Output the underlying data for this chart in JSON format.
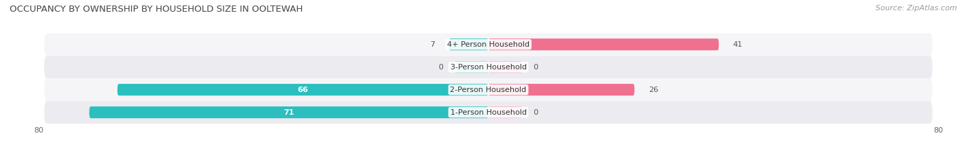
{
  "title": "OCCUPANCY BY OWNERSHIP BY HOUSEHOLD SIZE IN OOLTEWAH",
  "source": "Source: ZipAtlas.com",
  "categories": [
    "1-Person Household",
    "2-Person Household",
    "3-Person Household",
    "4+ Person Household"
  ],
  "owner_values": [
    71,
    66,
    0,
    7
  ],
  "renter_values": [
    0,
    26,
    0,
    41
  ],
  "owner_color": "#2bbfbf",
  "renter_color": "#f07090",
  "owner_color_zero": "#a0dede",
  "renter_color_zero": "#f8b8cc",
  "bg_row_color": "#ebebf0",
  "bg_alt_color": "#f5f5f8",
  "xlim": [
    -80,
    80
  ],
  "title_fontsize": 9.5,
  "source_fontsize": 8,
  "label_fontsize": 8,
  "value_fontsize": 8,
  "bar_height": 0.52
}
